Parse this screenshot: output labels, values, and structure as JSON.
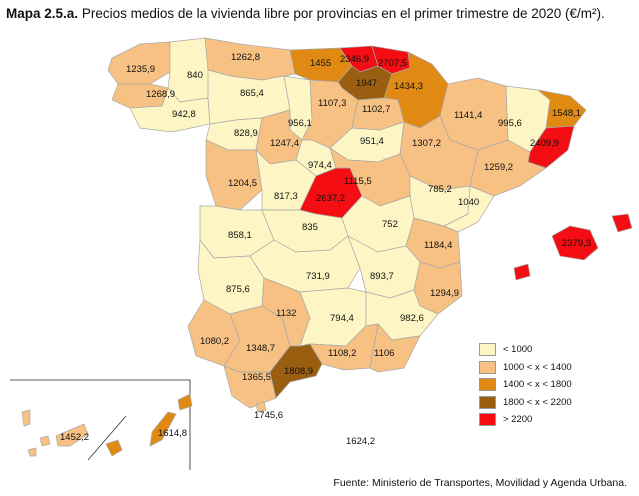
{
  "title": {
    "prefix": "Mapa 2.5.a.",
    "text": "Precios medios de la vivienda libre por provincias en el primer trimestre de 2020 (€/m²)."
  },
  "colors": {
    "lt1000": "#fdf6c4",
    "c1000_1400": "#f7c184",
    "c1400_1800": "#e08a14",
    "c1800_2200": "#9a5e10",
    "gt2200": "#f40d12"
  },
  "legend": [
    {
      "label": "< 1000",
      "color": "#fdf6c4"
    },
    {
      "label": "1000 < x < 1400",
      "color": "#f7c184"
    },
    {
      "label": "1400 < x < 1800",
      "color": "#e08a14"
    },
    {
      "label": "1800 < x < 2200",
      "color": "#9a5e10"
    },
    {
      "label": "> 2200",
      "color": "#f40d12"
    }
  ],
  "values": {
    "a_coruna": "1235,9",
    "lugo": "840",
    "asturias": "1262,8",
    "cantabria": "1455",
    "bizkaia": "2346,9",
    "gipuzkoa": "2707,5",
    "alava": "1947",
    "navarra": "1434,3",
    "pontevedra": "1268,9",
    "ourense": "942,8",
    "leon": "865,4",
    "palencia": "956,1",
    "burgos": "1107,3",
    "la_rioja": "1102,7",
    "huesca": "1141,4",
    "lleida": "995,6",
    "girona": "1548,1",
    "barcelona": "2409,9",
    "zamora": "828,9",
    "valladolid": "1247,4",
    "soria": "951,4",
    "zaragoza": "1307,2",
    "tarragona": "1259,2",
    "salamanca": "1204,5",
    "segovia": "974,4",
    "avila": "817,3",
    "madrid": "2637,2",
    "guadalajara": "1115,5",
    "teruel": "785,2",
    "castellon": "1040",
    "baleares": "2379,3",
    "caceres": "858,1",
    "toledo": "835",
    "cuenca": "752",
    "valencia": "1184,4",
    "badajoz": "875,6",
    "ciudad_real": "731,9",
    "albacete": "893,7",
    "alicante": "1294,9",
    "huelva": "1080,2",
    "sevilla": "1348,7",
    "cordoba": "1132",
    "jaen": "794,4",
    "murcia": "982,6",
    "granada": "1108,2",
    "almeria": "1106",
    "cadiz": "1365,5",
    "malaga": "1808,9",
    "ceuta": "1745,6",
    "melilla": "1624,2",
    "sc_tenerife": "1452,2",
    "las_palmas": "1614,8"
  },
  "source": "Fuente: Ministerio de Transportes, Movilidad y Agenda Urbana."
}
